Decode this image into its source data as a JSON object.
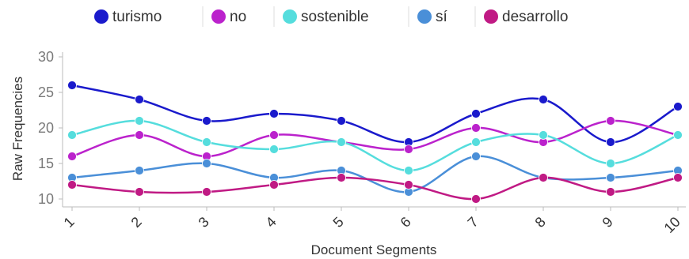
{
  "chart_data": {
    "type": "line",
    "xlabel": "Document Segments",
    "ylabel": "Raw Frequencies",
    "categories": [
      "1",
      "2",
      "3",
      "4",
      "5",
      "6",
      "7",
      "8",
      "9",
      "10"
    ],
    "ylim": [
      9.5,
      30
    ],
    "yticks": [
      10,
      15,
      20,
      25,
      30
    ],
    "grid": false,
    "legend_position": "top",
    "smooth": true,
    "series": [
      {
        "name": "turismo",
        "color": "#1a1acc",
        "values": [
          26,
          24,
          21,
          22,
          21,
          18,
          22,
          24,
          18,
          23
        ]
      },
      {
        "name": "no",
        "color": "#bb22cc",
        "values": [
          16,
          19,
          16,
          19,
          18,
          17,
          20,
          18,
          21,
          19
        ]
      },
      {
        "name": "sostenible",
        "color": "#55dddd",
        "values": [
          19,
          21,
          18,
          17,
          18,
          14,
          18,
          19,
          15,
          19
        ]
      },
      {
        "name": "sí",
        "color": "#4a8fd8",
        "values": [
          13,
          14,
          15,
          13,
          14,
          11,
          16,
          13,
          13,
          14
        ]
      },
      {
        "name": "desarrollo",
        "color": "#c01a84",
        "values": [
          12,
          11,
          11,
          12,
          13,
          12,
          10,
          13,
          11,
          13
        ]
      }
    ]
  }
}
